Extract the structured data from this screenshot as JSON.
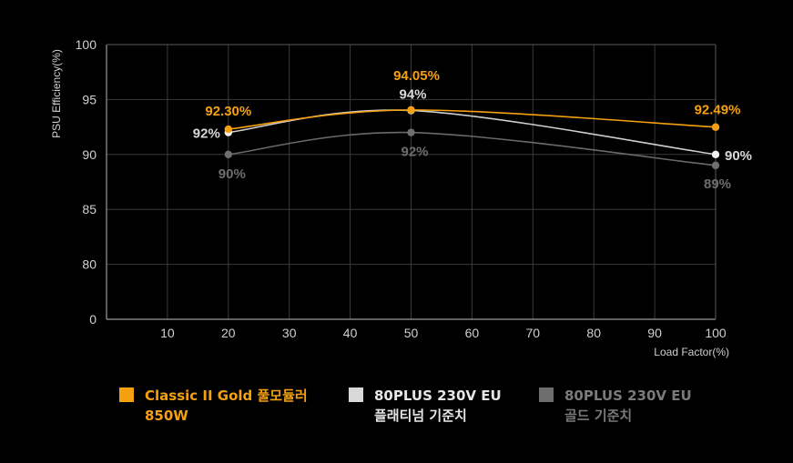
{
  "chart_data": {
    "type": "line",
    "xlabel": "Load Factor(%)",
    "ylabel": "PSU Efficiency(%)",
    "x_ticks": [
      10,
      20,
      30,
      40,
      50,
      60,
      70,
      80,
      90,
      100
    ],
    "y_ticks": [
      0,
      80,
      85,
      90,
      95,
      100
    ],
    "xlim": [
      0,
      100
    ],
    "grid": true,
    "legend_position": "bottom",
    "x": [
      20,
      50,
      100
    ],
    "series": [
      {
        "name": "Classic II Gold 풀모듈러 850W",
        "name_lines": [
          "Classic II Gold 풀모듈러",
          "850W"
        ],
        "color": "#f5a010",
        "values": [
          92.3,
          94.05,
          92.49
        ],
        "labels": [
          "92.30%",
          "94.05%",
          "92.49%"
        ]
      },
      {
        "name": "80PLUS 230V EU 플래티넘 기준치",
        "name_lines": [
          "80PLUS 230V EU",
          "플래티넘 기준치"
        ],
        "color": "#d9d9d9",
        "values": [
          92,
          94,
          90
        ],
        "labels": [
          "92%",
          "94%",
          "90%"
        ]
      },
      {
        "name": "80PLUS 230V EU 골드 기준치",
        "name_lines": [
          "80PLUS 230V EU",
          "골드 기준치"
        ],
        "color": "#6e6e6e",
        "values": [
          90,
          92,
          89
        ],
        "labels": [
          "90%",
          "92%",
          "89%"
        ]
      }
    ]
  }
}
